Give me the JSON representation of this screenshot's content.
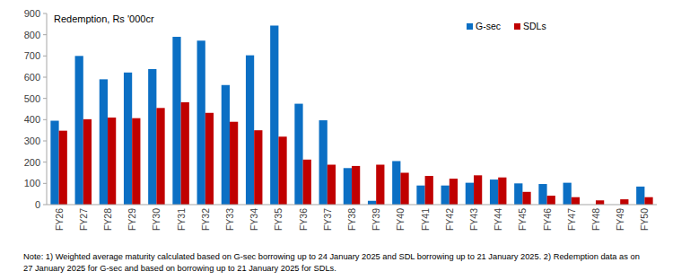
{
  "chart_data": {
    "type": "bar",
    "title": "Redemption, Rs '000cr",
    "categories": [
      "FY26",
      "FY27",
      "FY28",
      "FY29",
      "FY30",
      "FY31",
      "FY32",
      "FY33",
      "FY34",
      "FY35",
      "FY36",
      "FY37",
      "FY38",
      "FY39",
      "FY40",
      "FY41",
      "FY42",
      "FY43",
      "FY44",
      "FY45",
      "FY46",
      "FY47",
      "FY48",
      "FY49",
      "FY50"
    ],
    "series": [
      {
        "name": "G-sec",
        "color": "#0b6fc4",
        "values": [
          395,
          700,
          590,
          622,
          638,
          790,
          772,
          563,
          703,
          843,
          475,
          397,
          172,
          18,
          205,
          90,
          90,
          103,
          118,
          100,
          97,
          103,
          0,
          0,
          85
        ]
      },
      {
        "name": "SDLs",
        "color": "#c00000",
        "values": [
          348,
          402,
          410,
          407,
          455,
          482,
          432,
          390,
          350,
          320,
          212,
          188,
          182,
          188,
          150,
          135,
          122,
          138,
          128,
          60,
          42,
          35,
          20,
          25,
          35
        ]
      }
    ],
    "ylim": [
      0,
      900
    ],
    "yticks": [
      0,
      100,
      200,
      300,
      400,
      500,
      600,
      700,
      800,
      900
    ],
    "grid": false,
    "legend": "top-right",
    "notes": [
      "Note: 1) Weighted average maturity calculated based on G-sec borrowing up to 24 January 2025 and SDL borrowing up to 21 January 2025. 2) Redemption data as on",
      "27 January 2025 for G-sec and based on borrowing up to 21 January 2025 for SDLs."
    ]
  }
}
